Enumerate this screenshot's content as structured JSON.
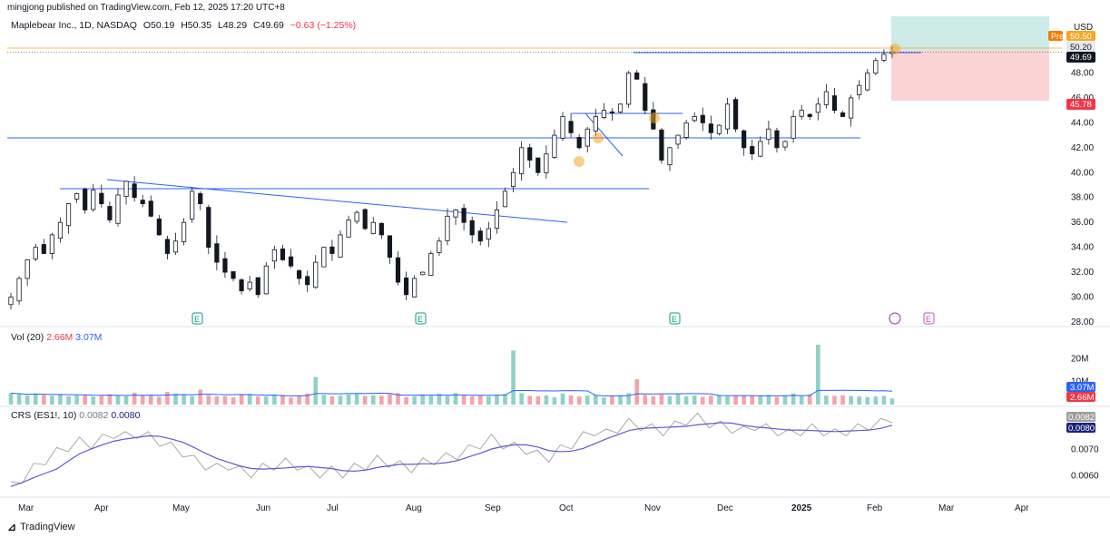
{
  "header": {
    "published": "mingjong published on TradingView.com, Feb 12, 2025 17:20 UTC+8",
    "symbol": "Maplebear Inc., 1D, NASDAQ",
    "open": "O50.19",
    "high": "H50.35",
    "low": "L48.29",
    "close": "C49.69",
    "change": "−0.63 (−1.25%)",
    "currency": "USD"
  },
  "price_tags": {
    "pre_label": "Pre",
    "pre_value": "50.50",
    "last_hl": "50.20",
    "current": "49.69",
    "stop": "45.78"
  },
  "volume_legend": {
    "title": "Vol (20)",
    "v1": "2.66M",
    "v2": "3.07M"
  },
  "volume_tags": {
    "ma": "3.07M",
    "vol": "2.66M"
  },
  "crs_legend": {
    "title": "CRS (ES1!, 10)",
    "v1": "0.0082",
    "v2": "0.0080"
  },
  "crs_tags": {
    "v1": "0.0082",
    "v2": "0.0080"
  },
  "footer": {
    "brand": "TradingView"
  },
  "colors": {
    "bull": "#089981",
    "bear": "#f23645",
    "line": "#2962ff",
    "ma": "#5b5bd6",
    "orange": "#f5a623"
  },
  "chart_data": {
    "type": "candlestick",
    "ylim": [
      28,
      50
    ],
    "yticks": [
      "28.00",
      "30.00",
      "32.00",
      "34.00",
      "36.00",
      "38.00",
      "40.00",
      "42.00",
      "44.00",
      "46.00",
      "48.00"
    ],
    "x_labels": [
      "Mar",
      "Apr",
      "May",
      "Jun",
      "Jul",
      "Aug",
      "Sep",
      "Oct",
      "Nov",
      "Dec",
      "2025",
      "Feb",
      "Mar",
      "Apr"
    ],
    "price_path": [
      30,
      31.5,
      33,
      34,
      33.5,
      35,
      36,
      37.5,
      38.3,
      37,
      38.6,
      37.5,
      36.2,
      38.2,
      39.3,
      38,
      37.5,
      36.5,
      35,
      33.5,
      34.5,
      36,
      38.5,
      37.5,
      34,
      32.8,
      32,
      31.5,
      30.5,
      31.2,
      30.2,
      32.5,
      33.8,
      33,
      32.5,
      31.5,
      31,
      32.8,
      34,
      33.5,
      35,
      36.2,
      36.8,
      35.5,
      36,
      35,
      33.2,
      31.2,
      30.2,
      31.5,
      32,
      33.5,
      34.5,
      36.5,
      37,
      36,
      35,
      34.5,
      35.5,
      37,
      38.5,
      40,
      42,
      41,
      40,
      41.5,
      43,
      44.5,
      43.2,
      42,
      43.5,
      44.5,
      45,
      44.8,
      45.5,
      48,
      47.5,
      45,
      43.5,
      41,
      42,
      43,
      44,
      44.5,
      44,
      43.2,
      43.8,
      45.5,
      43.5,
      42,
      41.5,
      42.5,
      43.5,
      42,
      42.5,
      44.5,
      45,
      44.5,
      45.5,
      46.5,
      45,
      44.5,
      46,
      47,
      48,
      49,
      49.5,
      49.69
    ],
    "volume_values": [
      5,
      4.5,
      4,
      4.8,
      4.2,
      3.8,
      4.5,
      3.6,
      4,
      4.2,
      3.5,
      3.8,
      4.5,
      4,
      3.6,
      5.2,
      4.1,
      3.9,
      3.4,
      5.5,
      4.8,
      4.2,
      3.7,
      6.5,
      4,
      3.6,
      3.8,
      3.2,
      4.4,
      4.7,
      3.6,
      3.5,
      4,
      4.2,
      3.1,
      3.7,
      4.8,
      12,
      4.2,
      3.6,
      3.9,
      4.4,
      4.5,
      3.8,
      4.1,
      3.8,
      4.6,
      5,
      3.3,
      3.6,
      4.2,
      3.9,
      4.8,
      3.7,
      5,
      4,
      3.6,
      4,
      3.6,
      4,
      4.6,
      23.5,
      5,
      3.8,
      3.6,
      4,
      3.2,
      4.8,
      4,
      3.5,
      3.9,
      4.2,
      3.1,
      3.6,
      3.8,
      5,
      11,
      4.2,
      3.6,
      4.4,
      3.7,
      4.5,
      3.6,
      4,
      3.3,
      3.9,
      4.2,
      3.6,
      3.8,
      4.1,
      3.7,
      3.8,
      4.1,
      3.3,
      4,
      4.8,
      3.6,
      4.4,
      26,
      3.9,
      3.8,
      4,
      3.7,
      3.5,
      3.3,
      3.5,
      3.8,
      2.66
    ],
    "volume_ylim": [
      0,
      28
    ],
    "volume_ticks": [
      "10M",
      "20M"
    ],
    "crs_path": [
      0.0056,
      0.0059,
      0.0063,
      0.0066,
      0.0069,
      0.0071,
      0.0073,
      0.0072,
      0.0074,
      0.0076,
      0.0075,
      0.0076,
      0.0075,
      0.0073,
      0.0071,
      0.0069,
      0.0066,
      0.0064,
      0.0063,
      0.0064,
      0.0062,
      0.0061,
      0.0063,
      0.0064,
      0.0065,
      0.0064,
      0.0062,
      0.0061,
      0.0062,
      0.0061,
      0.0063,
      0.0064,
      0.0066,
      0.0065,
      0.0064,
      0.0063,
      0.0065,
      0.0066,
      0.0067,
      0.0068,
      0.007,
      0.0072,
      0.0074,
      0.0072,
      0.0071,
      0.007,
      0.0068,
      0.0067,
      0.007,
      0.0072,
      0.0075,
      0.0077,
      0.0076,
      0.0078,
      0.008,
      0.0079,
      0.0078,
      0.0077,
      0.0079,
      0.0081,
      0.0082,
      0.008,
      0.0079,
      0.0078,
      0.0077,
      0.0079,
      0.0078,
      0.0077,
      0.0076,
      0.0077,
      0.0078,
      0.0077,
      0.0076,
      0.0077,
      0.0078,
      0.0079,
      0.008,
      0.0082
    ],
    "crs_ylim": [
      0.0053,
      0.0085
    ],
    "crs_ticks": [
      "0.0060",
      "0.0070"
    ]
  }
}
